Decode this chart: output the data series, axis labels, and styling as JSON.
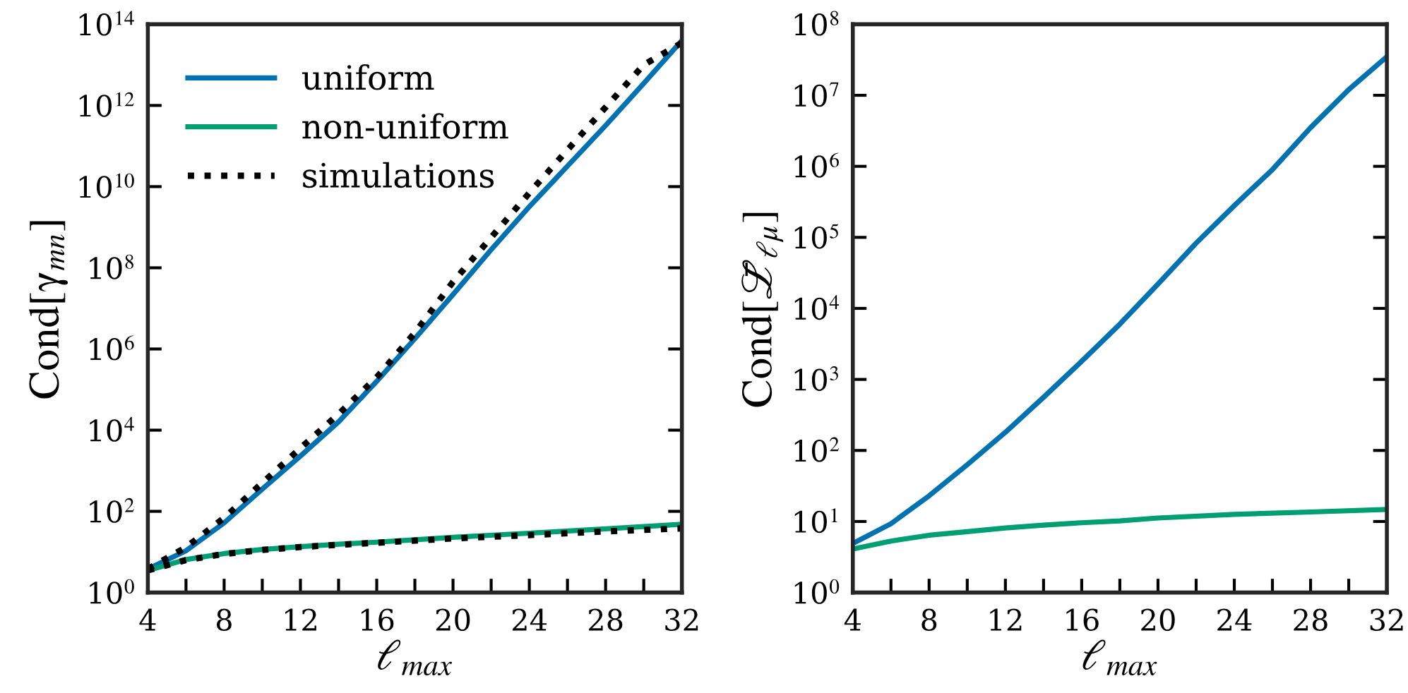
{
  "chart_data": [
    {
      "type": "line",
      "ylabel": "Cond[γ$_{mn}$]",
      "xlabel": "ℓ$_{max}$",
      "log": "y",
      "legend": "top left",
      "grid": false,
      "xlim": [
        4,
        32
      ],
      "ylim": [
        1,
        100000000000000.0
      ],
      "xticks": [
        4,
        {
          "value": 6,
          "label": null
        },
        8,
        {
          "value": 10,
          "label": null
        },
        12,
        {
          "value": 14,
          "label": null
        },
        16,
        {
          "value": 18,
          "label": null
        },
        20,
        {
          "value": 22,
          "label": null
        },
        24,
        {
          "value": 26,
          "label": null
        },
        28,
        {
          "value": 30,
          "label": null
        },
        32
      ],
      "yticks": [
        {
          "value": 1,
          "label": "10$^{0}$"
        },
        {
          "value": 100,
          "label": "10$^{2}$"
        },
        {
          "value": 10000.0,
          "label": "10$^{4}$"
        },
        {
          "value": 1000000.0,
          "label": "10$^{6}$"
        },
        {
          "value": 100000000.0,
          "label": "10$^{8}$"
        },
        {
          "value": 10000000000.0,
          "label": "10$^{10}$"
        },
        {
          "value": 1000000000000.0,
          "label": "10$^{12}$"
        },
        {
          "value": 100000000000000.0,
          "label": "10$^{14}$"
        }
      ],
      "series": [
        {
          "name": "uniform",
          "color": "#0072b2",
          "line_style": "solid",
          "x": [
            4,
            6,
            8,
            10,
            12,
            14,
            16,
            18,
            20,
            22,
            24,
            26,
            28,
            30,
            32
          ],
          "values": [
            3.8,
            10.7,
            52,
            355,
            2300,
            16000,
            160000,
            1800000,
            22000000,
            280000000,
            3200000000,
            32000000000,
            320000000000,
            3500000000000,
            40000000000000
          ]
        },
        {
          "name": "non-uniform",
          "color": "#009e73",
          "line_style": "solid",
          "x": [
            4,
            6,
            8,
            10,
            12,
            14,
            16,
            18,
            20,
            24,
            28,
            32
          ],
          "values": [
            3.5,
            6.5,
            9.1,
            11.5,
            13.5,
            15.5,
            17.4,
            20,
            23,
            29,
            37,
            48
          ]
        },
        {
          "name": "simulations",
          "color": "#000000",
          "line_style": "dotted",
          "x": [
            4,
            6,
            8,
            10,
            12,
            14,
            16,
            18,
            20,
            22,
            24,
            26,
            28,
            30,
            32
          ],
          "values": [
            3.8,
            13,
            69,
            500,
            3600,
            25000,
            200000,
            2500000,
            45000000,
            560000000,
            7000000000,
            80000000000,
            900000000000,
            10000000000000,
            35000000000000
          ]
        },
        {
          "color": "#000000",
          "line_style": "dotted",
          "x": [
            4,
            6,
            8,
            10,
            12,
            14,
            16,
            18,
            20,
            24,
            28,
            32
          ],
          "values": [
            3.5,
            6.3,
            8.9,
            11.2,
            13.2,
            15,
            16.8,
            19,
            21.5,
            26,
            32,
            38
          ]
        }
      ]
    },
    {
      "type": "line",
      "ylabel": "Cond[ℒ̄$_{ℓμ}$]",
      "xlabel": "ℓ$_{max}$",
      "log": "y",
      "grid": false,
      "xlim": [
        4,
        32
      ],
      "ylim": [
        1,
        100000000.0
      ],
      "xticks": [
        4,
        {
          "value": 6,
          "label": null
        },
        8,
        {
          "value": 10,
          "label": null
        },
        12,
        {
          "value": 14,
          "label": null
        },
        16,
        {
          "value": 18,
          "label": null
        },
        20,
        {
          "value": 22,
          "label": null
        },
        24,
        {
          "value": 26,
          "label": null
        },
        28,
        {
          "value": 30,
          "label": null
        },
        32
      ],
      "yticks": [
        {
          "value": 1,
          "label": "10$^{0}$"
        },
        {
          "value": 10,
          "label": "10$^{1}$"
        },
        {
          "value": 100,
          "label": "10$^{2}$"
        },
        {
          "value": 1000,
          "label": "10$^{3}$"
        },
        {
          "value": 10000.0,
          "label": "10$^{4}$"
        },
        {
          "value": 100000.0,
          "label": "10$^{5}$"
        },
        {
          "value": 1000000.0,
          "label": "10$^{6}$"
        },
        {
          "value": 10000000.0,
          "label": "10$^{7}$"
        },
        {
          "value": 100000000.0,
          "label": "10$^{8}$"
        }
      ],
      "series": [
        {
          "color": "#0072b2",
          "line_style": "solid",
          "x": [
            4,
            6,
            8,
            10,
            12,
            14,
            16,
            18,
            20,
            22,
            24,
            26,
            28,
            30,
            32
          ],
          "values": [
            4.9,
            9.3,
            23,
            63,
            180,
            560,
            1800,
            6000,
            22000,
            83000,
            280000,
            900000,
            3500000,
            12000000,
            35000000
          ]
        },
        {
          "color": "#009e73",
          "line_style": "solid",
          "x": [
            4,
            6,
            8,
            10,
            12,
            14,
            16,
            18,
            20,
            24,
            28,
            32
          ],
          "values": [
            4.1,
            5.3,
            6.4,
            7.2,
            8.1,
            8.9,
            9.6,
            10.2,
            11.2,
            12.6,
            13.6,
            14.8
          ]
        }
      ]
    }
  ]
}
